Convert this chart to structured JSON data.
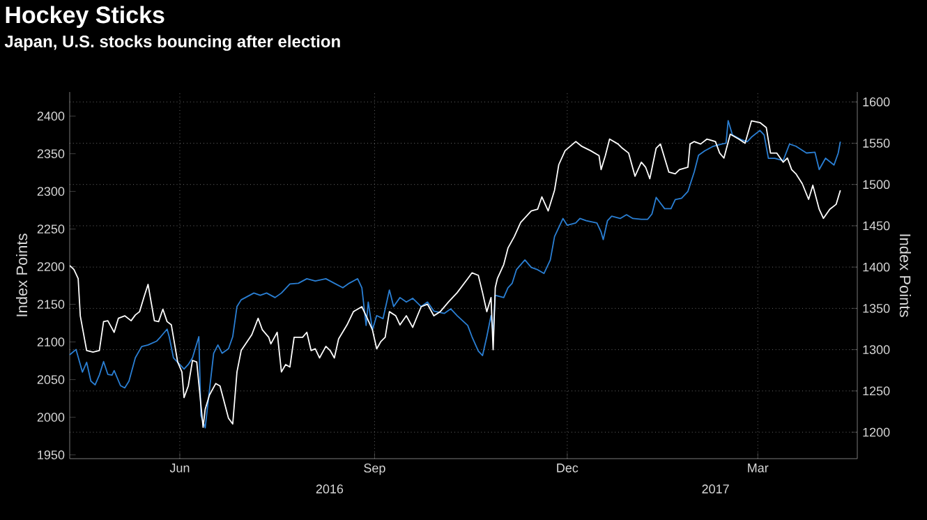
{
  "chart_data": {
    "type": "line",
    "title": "Hockey Sticks",
    "subtitle": "Japan, U.S. stocks bouncing after election",
    "ylabel": "Index Points",
    "y2label": "Index Points",
    "xlim": [
      "2016-04-24",
      "2017-05-01"
    ],
    "xticks": [
      {
        "value": "2016-06-15",
        "label": "Jun"
      },
      {
        "value": "2016-09-15",
        "label": "Sep"
      },
      {
        "value": "2016-12-15",
        "label": "Dec"
      },
      {
        "value": "2017-03-15",
        "label": "Mar"
      }
    ],
    "ylim": [
      1945,
      2432
    ],
    "yticks": [
      1950,
      2000,
      2050,
      2100,
      2150,
      2200,
      2250,
      2300,
      2350,
      2400
    ],
    "y2lim": [
      1168,
      1612
    ],
    "y2ticks": [
      1200,
      1250,
      1300,
      1350,
      1400,
      1450,
      1500,
      1550,
      1600
    ],
    "grid": true,
    "annotations": [
      "2016",
      "2017"
    ],
    "series": [
      {
        "color": "#ffffff",
        "axis": "y2",
        "x": [
          "2016-04-24",
          "2016-04-26",
          "2016-04-28",
          "2016-04-29",
          "2016-05-02",
          "2016-05-05",
          "2016-05-08",
          "2016-05-10",
          "2016-05-12",
          "2016-05-15",
          "2016-05-17",
          "2016-05-20",
          "2016-05-23",
          "2016-05-25",
          "2016-05-27",
          "2016-05-29",
          "2016-05-31",
          "2016-06-03",
          "2016-06-05",
          "2016-06-07",
          "2016-06-09",
          "2016-06-11",
          "2016-06-14",
          "2016-06-16",
          "2016-06-17",
          "2016-06-19",
          "2016-06-21",
          "2016-06-23",
          "2016-06-26",
          "2016-06-27",
          "2016-06-29",
          "2016-07-02",
          "2016-07-04",
          "2016-07-08",
          "2016-07-10",
          "2016-07-12",
          "2016-07-14",
          "2016-07-19",
          "2016-07-22",
          "2016-07-24",
          "2016-07-27",
          "2016-07-28",
          "2016-07-31",
          "2016-08-02",
          "2016-08-04",
          "2016-08-06",
          "2016-08-08",
          "2016-08-12",
          "2016-08-14",
          "2016-08-16",
          "2016-08-18",
          "2016-08-20",
          "2016-08-23",
          "2016-08-25",
          "2016-08-27",
          "2016-08-29",
          "2016-09-02",
          "2016-09-05",
          "2016-09-09",
          "2016-09-11",
          "2016-09-14",
          "2016-09-16",
          "2016-09-18",
          "2016-09-20",
          "2016-09-22",
          "2016-09-25",
          "2016-09-27",
          "2016-09-30",
          "2016-10-03",
          "2016-10-07",
          "2016-10-10",
          "2016-10-13",
          "2016-10-16",
          "2016-10-20",
          "2016-10-24",
          "2016-10-29",
          "2016-10-31",
          "2016-11-03",
          "2016-11-05",
          "2016-11-07",
          "2016-11-09",
          "2016-11-10",
          "2016-11-11",
          "2016-11-12",
          "2016-11-15",
          "2016-11-17",
          "2016-11-20",
          "2016-11-23",
          "2016-11-28",
          "2016-12-01",
          "2016-12-03",
          "2016-12-06",
          "2016-12-09",
          "2016-12-11",
          "2016-12-14",
          "2016-12-19",
          "2016-12-22",
          "2016-12-26",
          "2016-12-30",
          "2016-12-31",
          "2017-01-02",
          "2017-01-04",
          "2017-01-08",
          "2017-01-10",
          "2017-01-13",
          "2017-01-16",
          "2017-01-19",
          "2017-01-21",
          "2017-01-23",
          "2017-01-26",
          "2017-01-28",
          "2017-02-01",
          "2017-02-04",
          "2017-02-06",
          "2017-02-10",
          "2017-02-11",
          "2017-02-13",
          "2017-02-16",
          "2017-02-19",
          "2017-02-23",
          "2017-02-25",
          "2017-02-27",
          "2017-03-02",
          "2017-03-06",
          "2017-03-09",
          "2017-03-12",
          "2017-03-16",
          "2017-03-19",
          "2017-03-21",
          "2017-03-24",
          "2017-03-27",
          "2017-03-29",
          "2017-03-31",
          "2017-04-02",
          "2017-04-05",
          "2017-04-08",
          "2017-04-10",
          "2017-04-13",
          "2017-04-15",
          "2017-04-18",
          "2017-04-21",
          "2017-04-23"
        ],
        "values": [
          1402,
          1397,
          1386,
          1341,
          1299,
          1297,
          1299,
          1334,
          1335,
          1321,
          1338,
          1341,
          1335,
          1342,
          1346,
          1363,
          1379,
          1335,
          1334,
          1349,
          1334,
          1330,
          1285,
          1273,
          1242,
          1256,
          1287,
          1285,
          1206,
          1228,
          1245,
          1259,
          1256,
          1217,
          1210,
          1273,
          1299,
          1318,
          1338,
          1324,
          1315,
          1307,
          1321,
          1273,
          1282,
          1279,
          1315,
          1315,
          1321,
          1299,
          1301,
          1290,
          1304,
          1299,
          1290,
          1313,
          1330,
          1346,
          1352,
          1341,
          1324,
          1301,
          1310,
          1315,
          1346,
          1341,
          1330,
          1341,
          1327,
          1352,
          1355,
          1341,
          1346,
          1358,
          1369,
          1386,
          1393,
          1390,
          1369,
          1346,
          1363,
          1300,
          1375,
          1386,
          1403,
          1423,
          1437,
          1454,
          1468,
          1470,
          1485,
          1468,
          1493,
          1524,
          1541,
          1552,
          1546,
          1541,
          1535,
          1518,
          1535,
          1555,
          1549,
          1544,
          1538,
          1510,
          1527,
          1521,
          1507,
          1544,
          1549,
          1515,
          1513,
          1518,
          1521,
          1549,
          1552,
          1549,
          1555,
          1552,
          1538,
          1532,
          1561,
          1555,
          1550,
          1577,
          1575,
          1569,
          1538,
          1538,
          1527,
          1532,
          1518,
          1513,
          1501,
          1482,
          1499,
          1470,
          1459,
          1470,
          1476,
          1493
        ]
      },
      {
        "color": "#2a7fd4",
        "axis": "y",
        "x": [
          "2016-04-24",
          "2016-04-27",
          "2016-04-30",
          "2016-05-02",
          "2016-05-04",
          "2016-05-06",
          "2016-05-08",
          "2016-05-10",
          "2016-05-12",
          "2016-05-14",
          "2016-05-15",
          "2016-05-18",
          "2016-05-20",
          "2016-05-22",
          "2016-05-25",
          "2016-05-28",
          "2016-05-31",
          "2016-06-04",
          "2016-06-06",
          "2016-06-09",
          "2016-06-10",
          "2016-06-12",
          "2016-06-15",
          "2016-06-17",
          "2016-06-19",
          "2016-06-21",
          "2016-06-24",
          "2016-06-25",
          "2016-06-27",
          "2016-06-28",
          "2016-07-01",
          "2016-07-03",
          "2016-07-05",
          "2016-07-08",
          "2016-07-10",
          "2016-07-12",
          "2016-07-14",
          "2016-07-16",
          "2016-07-20",
          "2016-07-23",
          "2016-07-26",
          "2016-07-30",
          "2016-08-02",
          "2016-08-06",
          "2016-08-10",
          "2016-08-14",
          "2016-08-18",
          "2016-08-23",
          "2016-08-27",
          "2016-08-31",
          "2016-09-03",
          "2016-09-07",
          "2016-09-09",
          "2016-09-11",
          "2016-09-12",
          "2016-09-14",
          "2016-09-16",
          "2016-09-19",
          "2016-09-22",
          "2016-09-24",
          "2016-09-27",
          "2016-09-30",
          "2016-10-03",
          "2016-10-07",
          "2016-10-10",
          "2016-10-13",
          "2016-10-18",
          "2016-10-21",
          "2016-10-24",
          "2016-10-29",
          "2016-10-31",
          "2016-11-03",
          "2016-11-05",
          "2016-11-07",
          "2016-11-09",
          "2016-11-10",
          "2016-11-11",
          "2016-11-15",
          "2016-11-17",
          "2016-11-19",
          "2016-11-21",
          "2016-11-25",
          "2016-11-28",
          "2016-12-01",
          "2016-12-04",
          "2016-12-07",
          "2016-12-09",
          "2016-12-11",
          "2016-12-13",
          "2016-12-15",
          "2016-12-19",
          "2016-12-21",
          "2016-12-24",
          "2016-12-29",
          "2016-12-31",
          "2017-01-01",
          "2017-01-03",
          "2017-01-05",
          "2017-01-09",
          "2017-01-12",
          "2017-01-15",
          "2017-01-19",
          "2017-01-22",
          "2017-01-24",
          "2017-01-26",
          "2017-01-30",
          "2017-02-02",
          "2017-02-04",
          "2017-02-07",
          "2017-02-10",
          "2017-02-13",
          "2017-02-15",
          "2017-02-18",
          "2017-02-22",
          "2017-02-26",
          "2017-02-28",
          "2017-03-01",
          "2017-03-03",
          "2017-03-07",
          "2017-03-10",
          "2017-03-12",
          "2017-03-16",
          "2017-03-18",
          "2017-03-20",
          "2017-03-23",
          "2017-03-27",
          "2017-03-30",
          "2017-04-02",
          "2017-04-07",
          "2017-04-11",
          "2017-04-13",
          "2017-04-16",
          "2017-04-20",
          "2017-04-22",
          "2017-04-23"
        ],
        "values": [
          2083,
          2090,
          2060,
          2073,
          2048,
          2043,
          2056,
          2074,
          2057,
          2056,
          2062,
          2042,
          2039,
          2048,
          2079,
          2094,
          2096,
          2101,
          2107,
          2117,
          2107,
          2079,
          2070,
          2064,
          2070,
          2079,
          2107,
          2002,
          1986,
          2011,
          2085,
          2096,
          2085,
          2091,
          2107,
          2147,
          2156,
          2159,
          2165,
          2162,
          2165,
          2159,
          2165,
          2177,
          2178,
          2184,
          2181,
          2184,
          2178,
          2172,
          2178,
          2184,
          2172,
          2122,
          2153,
          2116,
          2135,
          2131,
          2169,
          2147,
          2159,
          2153,
          2158,
          2147,
          2153,
          2141,
          2138,
          2144,
          2135,
          2122,
          2107,
          2088,
          2082,
          2107,
          2135,
          2113,
          2162,
          2159,
          2172,
          2178,
          2196,
          2209,
          2199,
          2196,
          2191,
          2209,
          2240,
          2252,
          2264,
          2255,
          2258,
          2264,
          2261,
          2258,
          2246,
          2236,
          2261,
          2267,
          2264,
          2269,
          2264,
          2263,
          2263,
          2270,
          2292,
          2277,
          2277,
          2289,
          2291,
          2300,
          2326,
          2348,
          2354,
          2360,
          2363,
          2364,
          2394,
          2375,
          2369,
          2366,
          2372,
          2381,
          2375,
          2344,
          2344,
          2341,
          2363,
          2360,
          2351,
          2352,
          2329,
          2344,
          2335,
          2351,
          2366
        ]
      }
    ]
  }
}
